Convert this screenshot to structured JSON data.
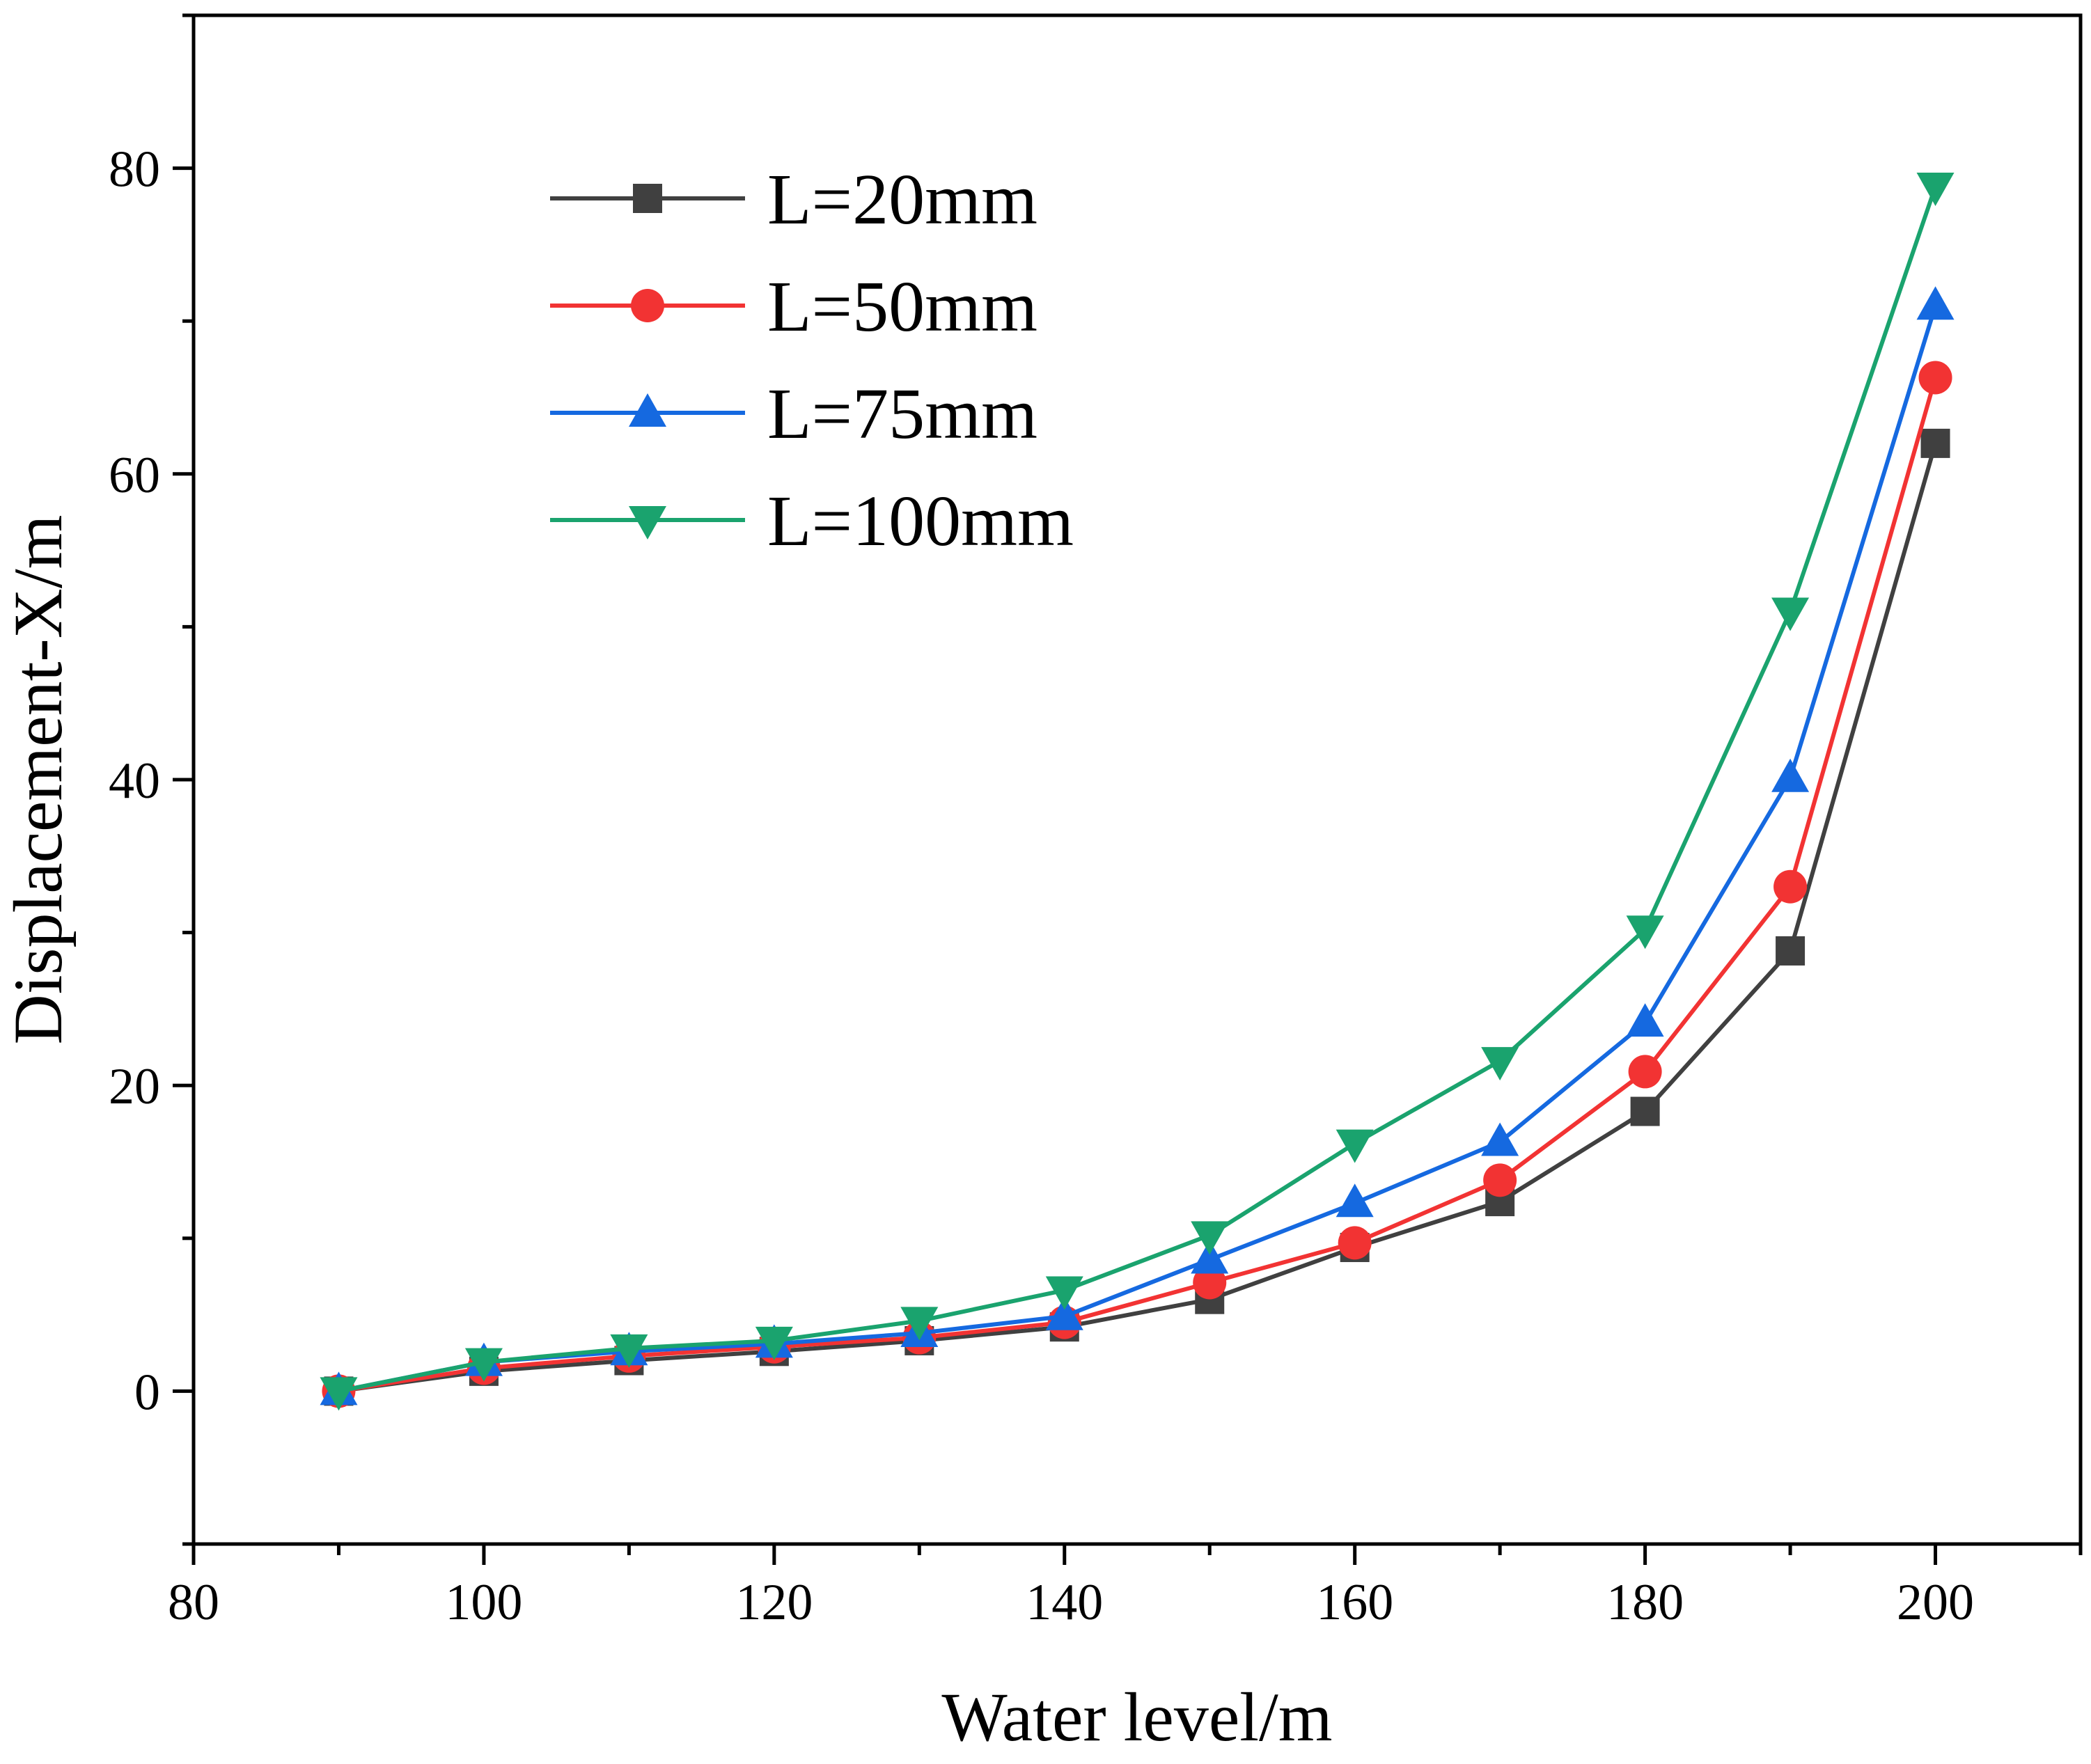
{
  "chart_data": {
    "type": "line",
    "title": "",
    "xlabel": "Water level/m",
    "ylabel": "Displacement-X/m",
    "xlim": [
      80,
      210
    ],
    "ylim": [
      -10,
      90
    ],
    "xticks": [
      80,
      100,
      120,
      140,
      160,
      180,
      200
    ],
    "yticks": [
      0,
      20,
      40,
      60,
      80
    ],
    "xtick_labels": [
      "80",
      "100",
      "120",
      "140",
      "160",
      "180",
      "200"
    ],
    "ytick_labels": [
      "0",
      "20",
      "40",
      "60",
      "80"
    ],
    "grid": false,
    "legend_position": "top-left",
    "x": [
      90,
      100,
      110,
      120,
      130,
      140,
      150,
      160,
      170,
      180,
      190,
      200
    ],
    "series": [
      {
        "name": "L=20mm",
        "color": "#404040",
        "marker": "square",
        "values": [
          0,
          1.3,
          2.0,
          2.6,
          3.3,
          4.2,
          6.0,
          9.4,
          12.4,
          18.3,
          28.8,
          62.0
        ]
      },
      {
        "name": "L=50mm",
        "color": "#f23333",
        "marker": "circle",
        "values": [
          0,
          1.5,
          2.3,
          2.9,
          3.5,
          4.5,
          7.1,
          9.7,
          13.8,
          20.9,
          33.0,
          66.3
        ]
      },
      {
        "name": "L=75mm",
        "color": "#1569e0",
        "marker": "triangle-up",
        "values": [
          0,
          1.9,
          2.6,
          3.1,
          3.8,
          4.9,
          8.6,
          12.3,
          16.3,
          24.1,
          40.1,
          71.0
        ]
      },
      {
        "name": "L=100mm",
        "color": "#1aa36e",
        "marker": "triangle-down",
        "values": [
          0,
          1.9,
          2.8,
          3.3,
          4.6,
          6.6,
          10.2,
          16.2,
          21.6,
          30.2,
          51.0,
          78.8
        ]
      }
    ]
  }
}
